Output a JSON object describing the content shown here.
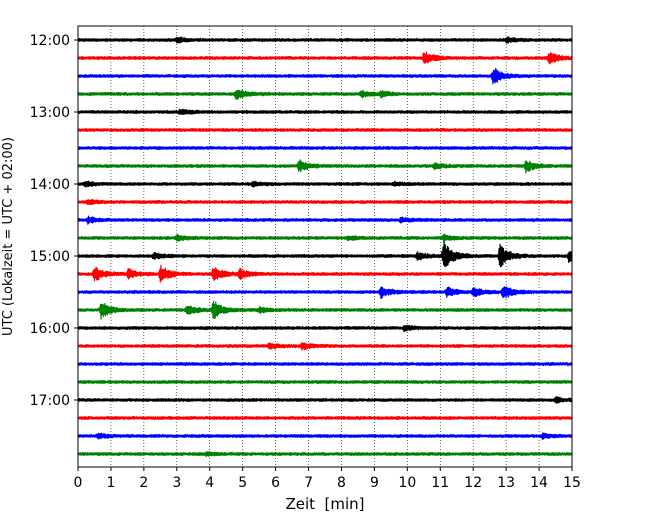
{
  "chart_data": {
    "type": "line",
    "title": "",
    "xlabel": "Zeit  [min]",
    "ylabel": "UTC (Lokalzeit = UTC + 02:00)",
    "xlim": [
      0,
      15
    ],
    "x_ticks": [
      0,
      1,
      2,
      3,
      4,
      5,
      6,
      7,
      8,
      9,
      10,
      11,
      12,
      13,
      14,
      15
    ],
    "x_tick_labels": [
      "0",
      "1",
      "2",
      "3",
      "4",
      "5",
      "6",
      "7",
      "8",
      "9",
      "10",
      "11",
      "12",
      "13",
      "14",
      "15"
    ],
    "y_tick_labels": [
      "12:00",
      "13:00",
      "14:00",
      "15:00",
      "16:00",
      "17:00"
    ],
    "y_tick_hours": [
      12,
      13,
      14,
      15,
      16,
      17
    ],
    "grid_x": true,
    "grid_style": "dotted",
    "row_interval_minutes": 15,
    "colors": [
      "#000000",
      "#ff0000",
      "#0000ff",
      "#008000"
    ],
    "series": [
      {
        "start": "12:00",
        "color": "#000000",
        "events": [
          {
            "t": 3.0,
            "amp": 0.8
          },
          {
            "t": 13.0,
            "amp": 0.7
          }
        ]
      },
      {
        "start": "12:15",
        "color": "#ff0000",
        "events": [
          {
            "t": 10.5,
            "amp": 2.0
          },
          {
            "t": 14.3,
            "amp": 1.8
          }
        ]
      },
      {
        "start": "12:30",
        "color": "#0000ff",
        "events": [
          {
            "t": 12.6,
            "amp": 2.6
          }
        ]
      },
      {
        "start": "12:45",
        "color": "#008000",
        "events": [
          {
            "t": 4.8,
            "amp": 1.6
          },
          {
            "t": 8.6,
            "amp": 1.0
          },
          {
            "t": 9.2,
            "amp": 0.8
          }
        ]
      },
      {
        "start": "13:00",
        "color": "#000000",
        "events": [
          {
            "t": 3.1,
            "amp": 0.8
          }
        ]
      },
      {
        "start": "13:15",
        "color": "#ff0000",
        "events": []
      },
      {
        "start": "13:30",
        "color": "#0000ff",
        "events": []
      },
      {
        "start": "13:45",
        "color": "#008000",
        "events": [
          {
            "t": 6.7,
            "amp": 1.8
          },
          {
            "t": 10.8,
            "amp": 0.8
          },
          {
            "t": 13.6,
            "amp": 1.8
          }
        ]
      },
      {
        "start": "14:00",
        "color": "#000000",
        "events": [
          {
            "t": 0.2,
            "amp": 0.9
          },
          {
            "t": 5.3,
            "amp": 0.6
          },
          {
            "t": 9.6,
            "amp": 0.6
          }
        ]
      },
      {
        "start": "14:15",
        "color": "#ff0000",
        "events": [
          {
            "t": 0.3,
            "amp": 0.6
          }
        ]
      },
      {
        "start": "14:30",
        "color": "#0000ff",
        "events": [
          {
            "t": 0.3,
            "amp": 0.9
          },
          {
            "t": 9.8,
            "amp": 0.7
          }
        ]
      },
      {
        "start": "14:45",
        "color": "#008000",
        "events": [
          {
            "t": 3.0,
            "amp": 0.8
          },
          {
            "t": 8.2,
            "amp": 0.6
          },
          {
            "t": 11.1,
            "amp": 0.9
          }
        ]
      },
      {
        "start": "15:00",
        "color": "#000000",
        "events": [
          {
            "t": 2.3,
            "amp": 1.0
          },
          {
            "t": 10.3,
            "amp": 1.1
          },
          {
            "t": 11.1,
            "amp": 4.5
          },
          {
            "t": 12.8,
            "amp": 3.6
          },
          {
            "t": 14.9,
            "amp": 2.0
          }
        ]
      },
      {
        "start": "15:15",
        "color": "#ff0000",
        "events": [
          {
            "t": 0.5,
            "amp": 2.2
          },
          {
            "t": 1.5,
            "amp": 1.5
          },
          {
            "t": 2.5,
            "amp": 2.6
          },
          {
            "t": 4.1,
            "amp": 2.2
          },
          {
            "t": 4.9,
            "amp": 1.4
          }
        ]
      },
      {
        "start": "15:30",
        "color": "#0000ff",
        "events": [
          {
            "t": 9.2,
            "amp": 1.6
          },
          {
            "t": 11.2,
            "amp": 1.4
          },
          {
            "t": 12.0,
            "amp": 1.4
          },
          {
            "t": 12.9,
            "amp": 2.2
          }
        ]
      },
      {
        "start": "15:45",
        "color": "#008000",
        "events": [
          {
            "t": 0.7,
            "amp": 2.6
          },
          {
            "t": 3.3,
            "amp": 1.6
          },
          {
            "t": 4.1,
            "amp": 2.8
          },
          {
            "t": 5.5,
            "amp": 0.8
          }
        ]
      },
      {
        "start": "16:00",
        "color": "#000000",
        "events": [
          {
            "t": 9.9,
            "amp": 0.8
          }
        ]
      },
      {
        "start": "16:15",
        "color": "#ff0000",
        "events": [
          {
            "t": 5.8,
            "amp": 0.8
          },
          {
            "t": 6.8,
            "amp": 1.0
          }
        ]
      },
      {
        "start": "16:30",
        "color": "#0000ff",
        "events": []
      },
      {
        "start": "16:45",
        "color": "#008000",
        "events": []
      },
      {
        "start": "17:00",
        "color": "#000000",
        "events": [
          {
            "t": 14.5,
            "amp": 0.7
          }
        ]
      },
      {
        "start": "17:15",
        "color": "#ff0000",
        "events": []
      },
      {
        "start": "17:30",
        "color": "#0000ff",
        "events": [
          {
            "t": 0.6,
            "amp": 0.8
          },
          {
            "t": 14.1,
            "amp": 0.7
          }
        ]
      },
      {
        "start": "17:45",
        "color": "#008000",
        "events": [
          {
            "t": 3.9,
            "amp": 0.5
          }
        ]
      }
    ]
  }
}
